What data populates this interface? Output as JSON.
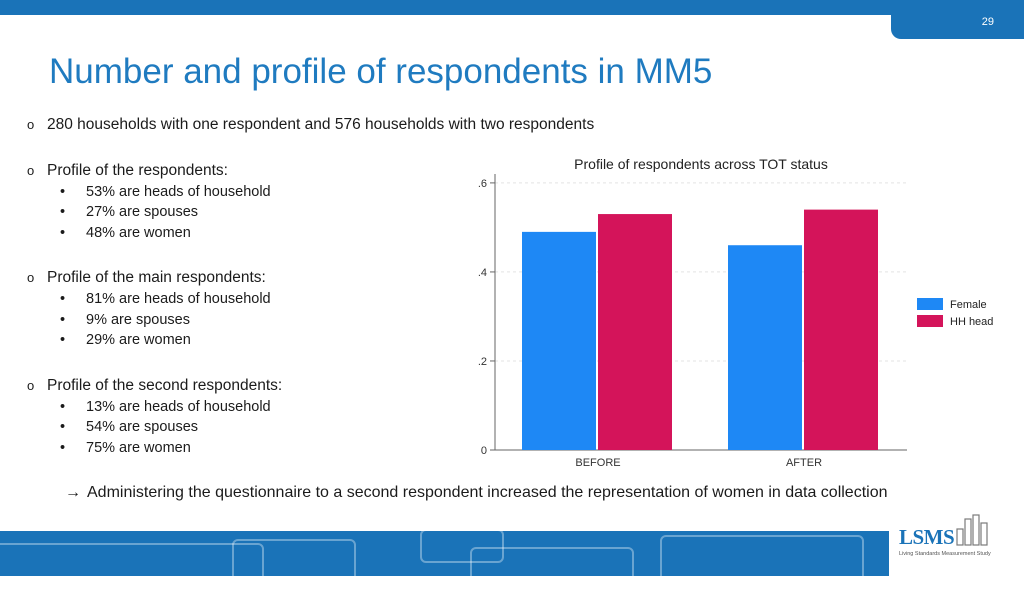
{
  "page_number": "29",
  "title": "Number and profile of respondents in MM5",
  "bullets": {
    "households": "280 households with one respondent and 576 households with two respondents",
    "profile_header": "Profile of the respondents:",
    "profile_items": [
      "53% are heads of household",
      "27% are spouses",
      "48% are women"
    ],
    "main_header": "Profile of the main respondents:",
    "main_items": [
      "81% are heads of household",
      "9% are spouses",
      "29% are women"
    ],
    "second_header": "Profile of the second respondents:",
    "second_items": [
      "13% are heads of household",
      "54% are spouses",
      "75% are women"
    ]
  },
  "conclusion": "Administering the questionnaire to a second respondent increased the representation of women in data collection",
  "logo": {
    "text": "LSMS",
    "subtitle": "Living Standards Measurement Study"
  },
  "colors": {
    "brand_blue": "#1a73b8",
    "female": "#1e88f5",
    "hh_head": "#d4145a"
  },
  "icons": {
    "bullet_level1": "o",
    "bullet_level2": "•",
    "arrow": "→"
  },
  "chart_data": {
    "type": "bar",
    "title": "Profile of respondents across TOT status",
    "categories": [
      "BEFORE",
      "AFTER"
    ],
    "series": [
      {
        "name": "Female",
        "values": [
          0.49,
          0.46
        ]
      },
      {
        "name": "HH head",
        "values": [
          0.53,
          0.54
        ]
      }
    ],
    "ylim": [
      0,
      0.62
    ],
    "yticks": [
      0,
      0.2,
      0.4,
      0.6
    ],
    "ytick_labels": [
      "0",
      ".2",
      ".4",
      ".6"
    ],
    "grid": true,
    "legend_position": "right"
  }
}
